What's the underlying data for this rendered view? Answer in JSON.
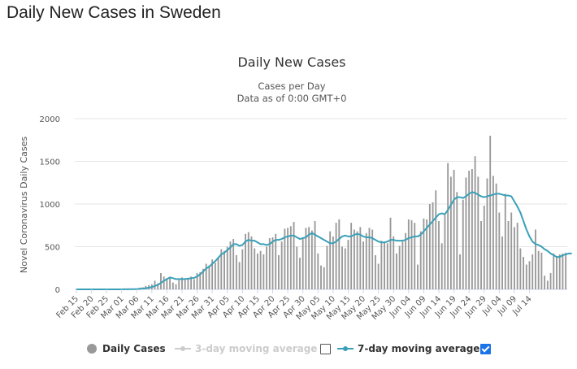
{
  "page": {
    "heading": "Daily New Cases in Sweden"
  },
  "chart_data": {
    "type": "bar",
    "title": "Daily New Cases",
    "subtitle_1": "Cases per Day",
    "subtitle_2": "Data as of 0:00 GMT+0",
    "ylabel": "Novel Coronavirus Daily Cases",
    "ylim": [
      0,
      2000
    ],
    "yticks": [
      "0",
      "500",
      "1000",
      "1500",
      "2000"
    ],
    "xticks": [
      "Feb 15",
      "Feb 20",
      "Feb 25",
      "Mar 01",
      "Mar 06",
      "Mar 11",
      "Mar 16",
      "Mar 21",
      "Mar 26",
      "Mar 31",
      "Apr 05",
      "Apr 10",
      "Apr 15",
      "Apr 20",
      "Apr 25",
      "Apr 30",
      "May 05",
      "May 10",
      "May 15",
      "May 20",
      "May 25",
      "May 30",
      "Jun 04",
      "Jun 09",
      "Jun 14",
      "Jun 19",
      "Jun 24",
      "Jun 29",
      "Jul 04",
      "Jul 09",
      "Jul 14"
    ],
    "start_date": "2020-02-15",
    "grid": true,
    "series": [
      {
        "name": "Daily Cases",
        "color": "#999999",
        "values": [
          0,
          0,
          0,
          0,
          0,
          0,
          0,
          0,
          0,
          0,
          0,
          0,
          0,
          0,
          0,
          0,
          5,
          2,
          3,
          5,
          10,
          20,
          25,
          40,
          50,
          60,
          100,
          70,
          190,
          150,
          130,
          140,
          80,
          60,
          110,
          140,
          110,
          130,
          150,
          120,
          190,
          200,
          240,
          300,
          280,
          350,
          310,
          380,
          470,
          450,
          500,
          560,
          590,
          400,
          320,
          470,
          650,
          670,
          620,
          480,
          420,
          450,
          410,
          500,
          600,
          610,
          650,
          400,
          560,
          710,
          720,
          740,
          790,
          500,
          370,
          590,
          720,
          730,
          690,
          800,
          420,
          280,
          260,
          510,
          680,
          620,
          780,
          820,
          500,
          480,
          580,
          780,
          700,
          680,
          730,
          560,
          660,
          720,
          700,
          400,
          300,
          570,
          560,
          540,
          840,
          620,
          420,
          510,
          560,
          660,
          820,
          810,
          780,
          290,
          680,
          830,
          820,
          1000,
          1020,
          1160,
          800,
          540,
          870,
          1480,
          1320,
          1400,
          1140,
          410,
          1050,
          1310,
          1390,
          1410,
          1560,
          1320,
          800,
          980,
          1300,
          1800,
          1330,
          1240,
          900,
          620,
          1120,
          800,
          900,
          730,
          780,
          480,
          380,
          290,
          330,
          410,
          700,
          450,
          430,
          160,
          100,
          190,
          420,
          380,
          410,
          420,
          430
        ]
      },
      {
        "name": "3-day moving average",
        "enabled": false
      },
      {
        "name": "7-day moving average",
        "color": "#3aa0b8",
        "enabled": true,
        "values": [
          0,
          0,
          0,
          0,
          0,
          0,
          0,
          0,
          0,
          0,
          0,
          0,
          0,
          0,
          0,
          0,
          1,
          1,
          2,
          2,
          3,
          6,
          9,
          13,
          19,
          26,
          40,
          52,
          76,
          100,
          120,
          140,
          130,
          120,
          120,
          120,
          120,
          125,
          130,
          135,
          150,
          175,
          210,
          245,
          265,
          300,
          330,
          370,
          410,
          430,
          460,
          490,
          530,
          530,
          510,
          520,
          560,
          580,
          570,
          570,
          550,
          530,
          530,
          520,
          530,
          560,
          580,
          580,
          590,
          610,
          620,
          630,
          630,
          610,
          590,
          600,
          610,
          640,
          660,
          640,
          620,
          600,
          580,
          560,
          540,
          540,
          560,
          590,
          620,
          630,
          620,
          620,
          640,
          650,
          640,
          620,
          610,
          610,
          600,
          580,
          560,
          550,
          550,
          560,
          580,
          580,
          570,
          570,
          570,
          580,
          600,
          610,
          620,
          620,
          640,
          680,
          720,
          760,
          800,
          840,
          880,
          890,
          880,
          930,
          990,
          1050,
          1080,
          1080,
          1070,
          1090,
          1120,
          1140,
          1130,
          1110,
          1090,
          1080,
          1090,
          1100,
          1110,
          1120,
          1120,
          1110,
          1100,
          1100,
          1090,
          1030,
          970,
          900,
          800,
          700,
          620,
          560,
          530,
          520,
          500,
          470,
          450,
          420,
          400,
          380,
          380,
          400,
          410,
          420,
          420
        ]
      }
    ],
    "legend": {
      "items": [
        {
          "label": "Daily Cases",
          "checked": null
        },
        {
          "label": "3-day moving average",
          "checked": false
        },
        {
          "label": "7-day moving average",
          "checked": true
        }
      ]
    }
  }
}
